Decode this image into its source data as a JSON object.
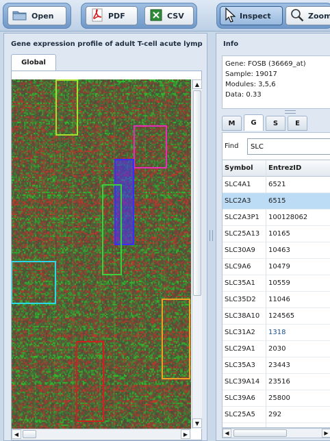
{
  "toolbar": {
    "open_label": "Open",
    "pdf_label": "PDF",
    "csv_label": "CSV",
    "inspect_label": "Inspect",
    "zoom_label": "Zoom"
  },
  "left": {
    "title": "Gene expression profile of adult T-cell acute lymp",
    "tab_label": "Global"
  },
  "heatmap_boxes": [
    {
      "name": "module-box-yellow-green",
      "color": "#a6e22e"
    },
    {
      "name": "module-box-magenta",
      "color": "#e62eb8"
    },
    {
      "name": "module-box-blue",
      "color": "#3b2cff"
    },
    {
      "name": "module-box-green",
      "color": "#3ad13a"
    },
    {
      "name": "module-box-cyan",
      "color": "#29d9e8"
    },
    {
      "name": "module-box-orange",
      "color": "#f0a020"
    },
    {
      "name": "module-box-red",
      "color": "#d02020"
    }
  ],
  "info": {
    "title": "Info",
    "gene": "Gene: FOSB (36669_at)",
    "sample": "Sample: 19017",
    "modules": "Modules: 3,5,6",
    "data": "Data: 0.33"
  },
  "subtabs": [
    "M",
    "G",
    "S",
    "E"
  ],
  "active_subtab": "G",
  "find": {
    "label": "Find",
    "value": "SLC"
  },
  "table": {
    "col_symbol": "Symbol",
    "col_entrez": "EntrezID",
    "selected_index": 1,
    "rows": [
      {
        "symbol": "SLC4A1",
        "id": "6521"
      },
      {
        "symbol": "SLC2A3",
        "id": "6515"
      },
      {
        "symbol": "SLC2A3P1",
        "id": "100128062"
      },
      {
        "symbol": "SLC25A13",
        "id": "10165"
      },
      {
        "symbol": "SLC30A9",
        "id": "10463"
      },
      {
        "symbol": "SLC9A6",
        "id": "10479"
      },
      {
        "symbol": "SLC35A1",
        "id": "10559"
      },
      {
        "symbol": "SLC35D2",
        "id": "11046"
      },
      {
        "symbol": "SLC38A10",
        "id": "124565"
      },
      {
        "symbol": "SLC31A2",
        "id": "1318"
      },
      {
        "symbol": "SLC29A1",
        "id": "2030"
      },
      {
        "symbol": "SLC35A3",
        "id": "23443"
      },
      {
        "symbol": "SLC39A14",
        "id": "23516"
      },
      {
        "symbol": "SLC39A6",
        "id": "25800"
      },
      {
        "symbol": "SLC25A5",
        "id": "292"
      }
    ]
  },
  "colors": {
    "heat_high": "#b83a3a",
    "heat_low": "#2fa02f",
    "heat_mid": "#4d5a40",
    "selection": "#bcdcf6"
  }
}
